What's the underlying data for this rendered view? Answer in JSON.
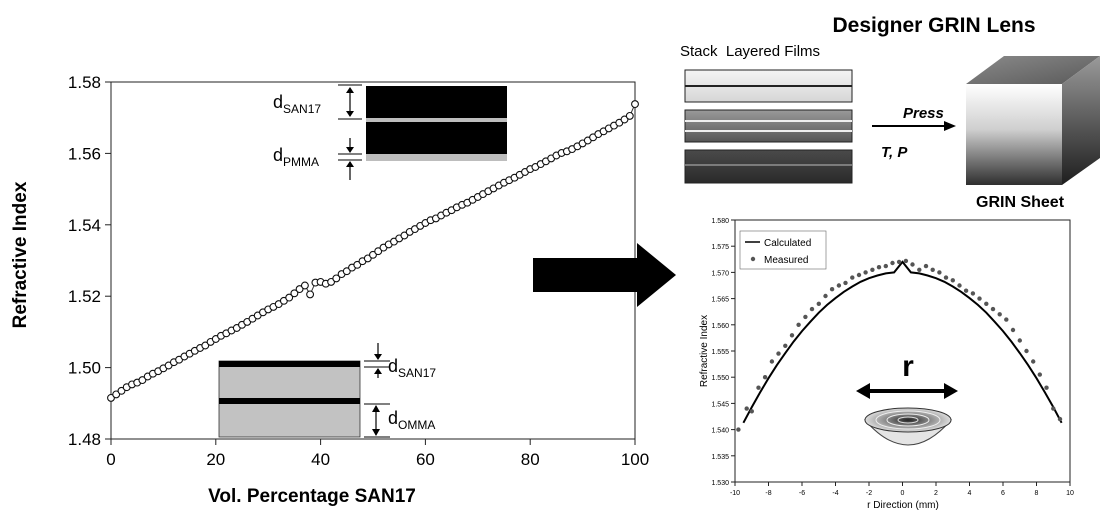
{
  "chart_data": [
    {
      "type": "scatter",
      "xlabel": "Vol. Percentage SAN17",
      "ylabel": "Refractive Index",
      "xlim": [
        0,
        100
      ],
      "ylim": [
        1.48,
        1.58
      ],
      "xticks": [
        "0",
        "20",
        "40",
        "60",
        "80",
        "100"
      ],
      "yticks": [
        "1.48",
        "1.50",
        "1.52",
        "1.54",
        "1.56",
        "1.58"
      ],
      "marker": "open-circle",
      "line": "connected",
      "x": [
        0,
        1,
        2,
        3,
        4,
        5,
        6,
        7,
        8,
        9,
        10,
        11,
        12,
        13,
        14,
        15,
        16,
        17,
        18,
        19,
        20,
        21,
        22,
        23,
        24,
        25,
        26,
        27,
        28,
        29,
        30,
        31,
        32,
        33,
        34,
        35,
        36,
        37,
        38,
        39,
        40,
        41,
        42,
        43,
        44,
        45,
        46,
        47,
        48,
        49,
        50,
        51,
        52,
        53,
        54,
        55,
        56,
        57,
        58,
        59,
        60,
        61,
        62,
        63,
        64,
        65,
        66,
        67,
        68,
        69,
        70,
        71,
        72,
        73,
        74,
        75,
        76,
        77,
        78,
        79,
        80,
        81,
        82,
        83,
        84,
        85,
        86,
        87,
        88,
        89,
        90,
        91,
        92,
        93,
        94,
        95,
        96,
        97,
        98,
        99,
        100
      ],
      "y": [
        1.4915,
        1.4925,
        1.4935,
        1.4945,
        1.4953,
        1.4958,
        1.4965,
        1.4975,
        1.4983,
        1.499,
        1.4998,
        1.5006,
        1.5015,
        1.5022,
        1.5031,
        1.5039,
        1.5047,
        1.5055,
        1.5062,
        1.5072,
        1.508,
        1.5089,
        1.5096,
        1.5104,
        1.5111,
        1.512,
        1.5128,
        1.5137,
        1.5146,
        1.5155,
        1.5163,
        1.517,
        1.5178,
        1.5187,
        1.5196,
        1.5208,
        1.522,
        1.523,
        1.5205,
        1.5238,
        1.524,
        1.5235,
        1.524,
        1.525,
        1.5262,
        1.527,
        1.528,
        1.5288,
        1.5298,
        1.5306,
        1.5316,
        1.5326,
        1.5336,
        1.5345,
        1.5353,
        1.5362,
        1.537,
        1.538,
        1.5388,
        1.5397,
        1.5405,
        1.5413,
        1.5418,
        1.5426,
        1.5434,
        1.5441,
        1.5449,
        1.5456,
        1.5462,
        1.547,
        1.5478,
        1.5486,
        1.5494,
        1.5502,
        1.551,
        1.5518,
        1.5525,
        1.5532,
        1.554,
        1.5548,
        1.5556,
        1.5562,
        1.557,
        1.5578,
        1.5586,
        1.5594,
        1.5601,
        1.5606,
        1.5612,
        1.562,
        1.5628,
        1.5636,
        1.5645,
        1.5654,
        1.5662,
        1.567,
        1.5678,
        1.5686,
        1.5695,
        1.5705,
        1.5738
      ],
      "annotations": {
        "top_thin": "d",
        "top_thin_sub": "SAN17",
        "top_thick": "d",
        "top_thick_sub": "PMMA",
        "bottom_thin": "d",
        "bottom_thin_sub": "SAN17",
        "bottom_thick": "d",
        "bottom_thick_sub": "OMMA"
      }
    },
    {
      "type": "line",
      "xlabel": "r Direction (mm)",
      "ylabel": "Refractive Index",
      "xlim": [
        -10,
        10
      ],
      "ylim": [
        1.53,
        1.58
      ],
      "xticks": [
        "-10",
        "-8",
        "-6",
        "-4",
        "-2",
        "0",
        "2",
        "4",
        "6",
        "8",
        "10"
      ],
      "yticks": [
        "1.530",
        "1.535",
        "1.540",
        "1.545",
        "1.550",
        "1.555",
        "1.560",
        "1.565",
        "1.570",
        "1.575",
        "1.580"
      ],
      "legend": "top-left",
      "series": [
        {
          "name": "Calculated",
          "style": "line",
          "x": [
            -9.5,
            -9,
            -8.5,
            -8,
            -7.5,
            -7,
            -6.5,
            -6,
            -5.5,
            -5,
            -4.5,
            -4,
            -3.5,
            -3,
            -2.5,
            -2,
            -1.5,
            -1,
            -0.5,
            0,
            0.5,
            1,
            1.5,
            2,
            2.5,
            3,
            3.5,
            4,
            4.5,
            5,
            5.5,
            6,
            6.5,
            7,
            7.5,
            8,
            8.5,
            9,
            9.5
          ],
          "y": [
            1.5413,
            1.5443,
            1.5471,
            1.5498,
            1.5523,
            1.5546,
            1.5568,
            1.5588,
            1.5606,
            1.5623,
            1.5638,
            1.5651,
            1.5663,
            1.5673,
            1.5682,
            1.5689,
            1.5694,
            1.5698,
            1.57,
            1.572,
            1.57,
            1.5698,
            1.5694,
            1.5689,
            1.5682,
            1.5673,
            1.5663,
            1.5651,
            1.5638,
            1.5623,
            1.5606,
            1.5588,
            1.5568,
            1.5546,
            1.5523,
            1.5498,
            1.5471,
            1.5443,
            1.5413
          ]
        },
        {
          "name": "Measured",
          "style": "points",
          "x": [
            -9.8,
            -9.3,
            -9,
            -8.6,
            -8.2,
            -7.8,
            -7.4,
            -7,
            -6.6,
            -6.2,
            -5.8,
            -5.4,
            -5,
            -4.6,
            -4.2,
            -3.8,
            -3.4,
            -3,
            -2.6,
            -2.2,
            -1.8,
            -1.4,
            -1,
            -0.6,
            -0.2,
            0.2,
            0.6,
            1,
            1.4,
            1.8,
            2.2,
            2.6,
            3,
            3.4,
            3.8,
            4.2,
            4.6,
            5,
            5.4,
            5.8,
            6.2,
            6.6,
            7,
            7.4,
            7.8,
            8.2,
            8.6,
            9,
            9.4
          ],
          "y": [
            1.54,
            1.544,
            1.5435,
            1.548,
            1.55,
            1.553,
            1.5545,
            1.556,
            1.558,
            1.56,
            1.5615,
            1.563,
            1.564,
            1.5655,
            1.5668,
            1.5675,
            1.568,
            1.569,
            1.5695,
            1.57,
            1.5705,
            1.571,
            1.5712,
            1.5718,
            1.572,
            1.5722,
            1.5715,
            1.5705,
            1.5712,
            1.5705,
            1.57,
            1.569,
            1.5685,
            1.5675,
            1.5665,
            1.566,
            1.565,
            1.564,
            1.563,
            1.562,
            1.561,
            1.559,
            1.557,
            1.555,
            1.553,
            1.5505,
            1.548,
            1.544,
            1.542
          ]
        }
      ],
      "annotation_r": "r"
    }
  ],
  "right_panel": {
    "title": "Designer GRIN Lens",
    "stack_label": "Stack  Layered Films",
    "press_label": "Press",
    "tp_label": "T, P",
    "sheet_label": "GRIN Sheet"
  }
}
